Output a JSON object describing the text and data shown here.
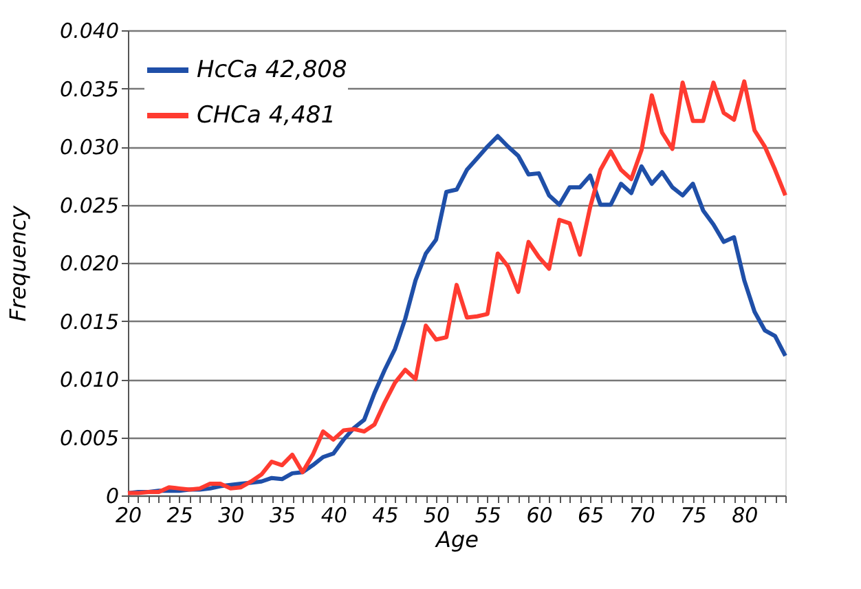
{
  "chart_data": {
    "type": "line",
    "xlabel": "Age",
    "ylabel": "Frequency",
    "x": [
      20,
      21,
      22,
      23,
      24,
      25,
      26,
      27,
      28,
      29,
      30,
      31,
      32,
      33,
      34,
      35,
      36,
      37,
      38,
      39,
      40,
      41,
      42,
      43,
      44,
      45,
      46,
      47,
      48,
      49,
      50,
      51,
      52,
      53,
      54,
      55,
      56,
      57,
      58,
      59,
      60,
      61,
      62,
      63,
      64,
      65,
      66,
      67,
      68,
      69,
      70,
      71,
      72,
      73,
      74,
      75,
      76,
      77,
      78,
      79,
      80,
      81,
      82,
      83,
      84
    ],
    "series": [
      {
        "name": "HcCa 42,808",
        "color": "#1f4fa8",
        "values": [
          0.0002,
          0.0003,
          0.0003,
          0.0004,
          0.0004,
          0.0004,
          0.0005,
          0.0005,
          0.0006,
          0.0008,
          0.0009,
          0.001,
          0.0011,
          0.0012,
          0.0015,
          0.0014,
          0.0019,
          0.002,
          0.0026,
          0.0033,
          0.0036,
          0.0048,
          0.0058,
          0.0065,
          0.0088,
          0.0108,
          0.0126,
          0.0152,
          0.0185,
          0.0208,
          0.022,
          0.0261,
          0.0263,
          0.028,
          0.029,
          0.03,
          0.0309,
          0.03,
          0.0292,
          0.0276,
          0.0277,
          0.0258,
          0.025,
          0.0265,
          0.0265,
          0.0275,
          0.025,
          0.025,
          0.0268,
          0.026,
          0.0283,
          0.0268,
          0.0278,
          0.0265,
          0.0258,
          0.0268,
          0.0245,
          0.0233,
          0.0218,
          0.0222,
          0.0185,
          0.0158,
          0.0142,
          0.0137,
          0.012
        ]
      },
      {
        "name": "CHCa 4,481",
        "color": "#ff3b30",
        "values": [
          0.0002,
          0.0002,
          0.0003,
          0.0003,
          0.0007,
          0.0006,
          0.0005,
          0.0006,
          0.001,
          0.001,
          0.0006,
          0.0007,
          0.0012,
          0.0018,
          0.0029,
          0.0026,
          0.0035,
          0.002,
          0.0035,
          0.0055,
          0.0048,
          0.0056,
          0.0057,
          0.0055,
          0.0061,
          0.008,
          0.0097,
          0.0108,
          0.01,
          0.0146,
          0.0134,
          0.0136,
          0.0181,
          0.0153,
          0.0154,
          0.0156,
          0.0208,
          0.0197,
          0.0175,
          0.0218,
          0.0205,
          0.0195,
          0.0237,
          0.0234,
          0.0207,
          0.0248,
          0.028,
          0.0296,
          0.028,
          0.0272,
          0.0297,
          0.0344,
          0.0312,
          0.0298,
          0.0355,
          0.0322,
          0.0322,
          0.0355,
          0.0329,
          0.0323,
          0.0356,
          0.0314,
          0.03,
          0.028,
          0.0258
        ]
      }
    ],
    "xlim": [
      20,
      84
    ],
    "xticks": [
      20,
      {
        "value": 21,
        "label": null
      },
      {
        "value": 22,
        "label": null
      },
      {
        "value": 23,
        "label": null
      },
      {
        "value": 24,
        "label": null
      },
      25,
      {
        "value": 26,
        "label": null
      },
      {
        "value": 27,
        "label": null
      },
      {
        "value": 28,
        "label": null
      },
      {
        "value": 29,
        "label": null
      },
      30,
      {
        "value": 31,
        "label": null
      },
      {
        "value": 32,
        "label": null
      },
      {
        "value": 33,
        "label": null
      },
      {
        "value": 34,
        "label": null
      },
      35,
      {
        "value": 36,
        "label": null
      },
      {
        "value": 37,
        "label": null
      },
      {
        "value": 38,
        "label": null
      },
      {
        "value": 39,
        "label": null
      },
      40,
      {
        "value": 41,
        "label": null
      },
      {
        "value": 42,
        "label": null
      },
      {
        "value": 43,
        "label": null
      },
      {
        "value": 44,
        "label": null
      },
      45,
      {
        "value": 46,
        "label": null
      },
      {
        "value": 47,
        "label": null
      },
      {
        "value": 48,
        "label": null
      },
      {
        "value": 49,
        "label": null
      },
      50,
      {
        "value": 51,
        "label": null
      },
      {
        "value": 52,
        "label": null
      },
      {
        "value": 53,
        "label": null
      },
      {
        "value": 54,
        "label": null
      },
      55,
      {
        "value": 56,
        "label": null
      },
      {
        "value": 57,
        "label": null
      },
      {
        "value": 58,
        "label": null
      },
      {
        "value": 59,
        "label": null
      },
      60,
      {
        "value": 61,
        "label": null
      },
      {
        "value": 62,
        "label": null
      },
      {
        "value": 63,
        "label": null
      },
      {
        "value": 64,
        "label": null
      },
      65,
      {
        "value": 66,
        "label": null
      },
      {
        "value": 67,
        "label": null
      },
      {
        "value": 68,
        "label": null
      },
      {
        "value": 69,
        "label": null
      },
      70,
      {
        "value": 71,
        "label": null
      },
      {
        "value": 72,
        "label": null
      },
      {
        "value": 73,
        "label": null
      },
      {
        "value": 74,
        "label": null
      },
      75,
      {
        "value": 76,
        "label": null
      },
      {
        "value": 77,
        "label": null
      },
      {
        "value": 78,
        "label": null
      },
      {
        "value": 79,
        "label": null
      },
      80,
      {
        "value": 81,
        "label": null
      },
      {
        "value": 82,
        "label": null
      },
      {
        "value": 83,
        "label": null
      },
      {
        "value": 84,
        "label": null
      }
    ],
    "ylim": [
      0,
      0.04
    ],
    "yticks": [
      0,
      {
        "value": 0.005,
        "label": "0.005"
      },
      {
        "value": 0.01,
        "label": "0.010"
      },
      {
        "value": 0.015,
        "label": "0.015"
      },
      {
        "value": 0.02,
        "label": "0.020"
      },
      {
        "value": 0.025,
        "label": "0.025"
      },
      {
        "value": 0.03,
        "label": "0.030"
      },
      {
        "value": 0.035,
        "label": "0.035"
      },
      {
        "value": 0.04,
        "label": "0.040"
      }
    ],
    "grid": "y",
    "legend": "top left",
    "marker": "none",
    "line_style": "solid"
  }
}
